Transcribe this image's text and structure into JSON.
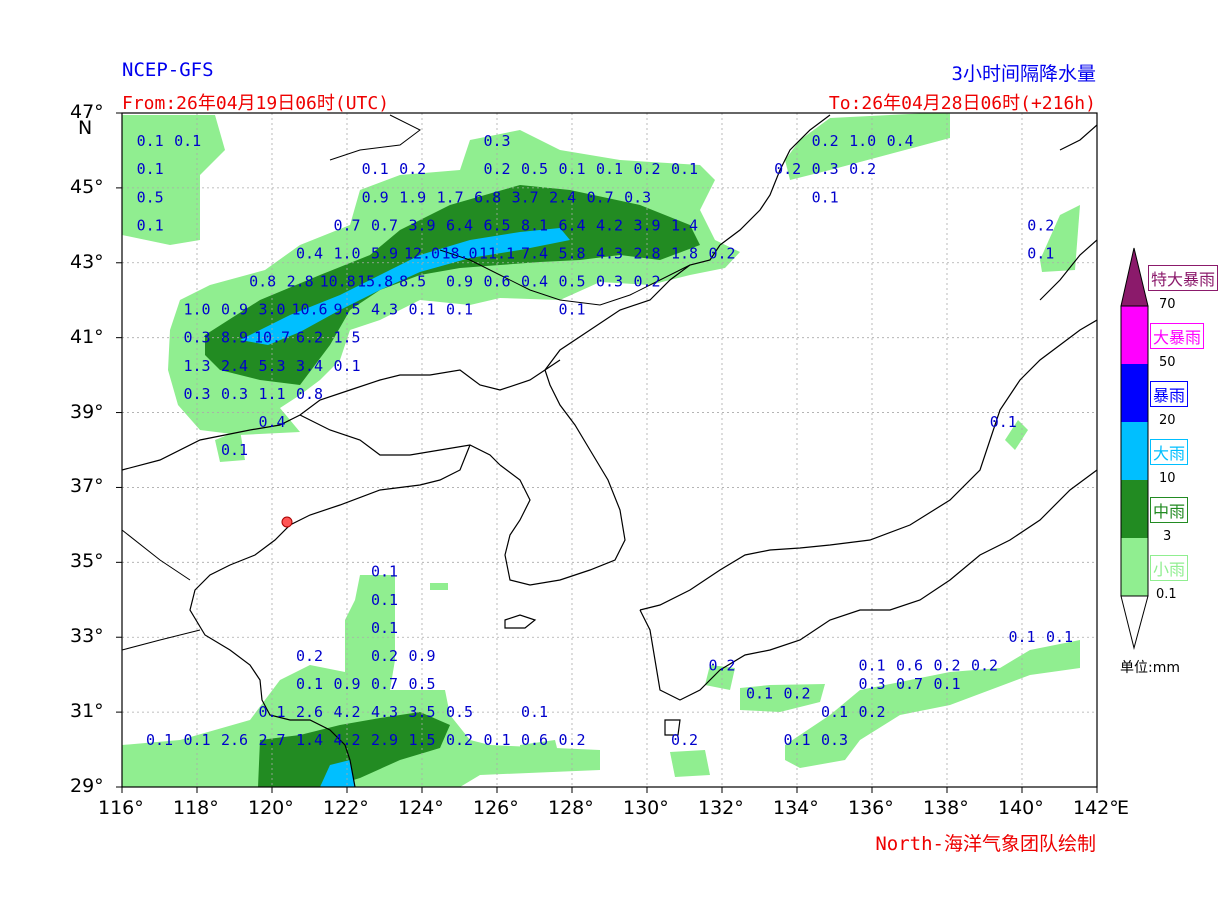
{
  "header": {
    "model": "NCEP-GFS",
    "product": "3小时间隔降水量",
    "from": "From:26年04月19日06时(UTC)",
    "to": "To:26年04月28日06时(+216h)"
  },
  "footer": {
    "credit": "North-海洋气象团队绘制"
  },
  "axes": {
    "lat_ticks": [
      "47°",
      "45°",
      "43°",
      "41°",
      "39°",
      "37°",
      "35°",
      "33°",
      "31°",
      "29°"
    ],
    "lat_unit": "N",
    "lon_ticks": [
      "116°",
      "118°",
      "120°",
      "122°",
      "124°",
      "126°",
      "128°",
      "130°",
      "132°",
      "134°",
      "136°",
      "138°",
      "140°",
      "142°"
    ],
    "lon_unit": "E",
    "lon_range": [
      116,
      142
    ],
    "lat_range": [
      29,
      47
    ],
    "grid": true
  },
  "legend": {
    "unit": "单位:mm",
    "thresholds": [
      "0.1",
      "3",
      "10",
      "20",
      "50",
      "70"
    ],
    "categories": [
      {
        "name": "小雨",
        "color": "#90ee90"
      },
      {
        "name": "中雨",
        "color": "#228b22"
      },
      {
        "name": "大雨",
        "color": "#00bfff"
      },
      {
        "name": "暴雨",
        "color": "#0000ff"
      },
      {
        "name": "大暴雨",
        "color": "#ff00ff"
      },
      {
        "name": "特大暴雨",
        "color": "#8b1a6b"
      }
    ]
  },
  "values": [
    {
      "lon": 116.75,
      "lat": 46.25,
      "v": "0.1"
    },
    {
      "lon": 117.75,
      "lat": 46.25,
      "v": "0.1"
    },
    {
      "lon": 116.75,
      "lat": 45.5,
      "v": "0.1"
    },
    {
      "lon": 116.75,
      "lat": 44.75,
      "v": "0.5"
    },
    {
      "lon": 116.75,
      "lat": 44.0,
      "v": "0.1"
    },
    {
      "lon": 126.0,
      "lat": 46.25,
      "v": "0.3"
    },
    {
      "lon": 122.75,
      "lat": 45.5,
      "v": "0.1"
    },
    {
      "lon": 123.75,
      "lat": 45.5,
      "v": "0.2"
    },
    {
      "lon": 126.0,
      "lat": 45.5,
      "v": "0.2"
    },
    {
      "lon": 127.0,
      "lat": 45.5,
      "v": "0.5"
    },
    {
      "lon": 128.0,
      "lat": 45.5,
      "v": "0.1"
    },
    {
      "lon": 129.0,
      "lat": 45.5,
      "v": "0.1"
    },
    {
      "lon": 130.0,
      "lat": 45.5,
      "v": "0.2"
    },
    {
      "lon": 131.0,
      "lat": 45.5,
      "v": "0.1"
    },
    {
      "lon": 122.75,
      "lat": 44.75,
      "v": "0.9"
    },
    {
      "lon": 123.75,
      "lat": 44.75,
      "v": "1.9"
    },
    {
      "lon": 124.75,
      "lat": 44.75,
      "v": "1.7"
    },
    {
      "lon": 125.75,
      "lat": 44.75,
      "v": "6.8"
    },
    {
      "lon": 126.75,
      "lat": 44.75,
      "v": "3.7"
    },
    {
      "lon": 127.75,
      "lat": 44.75,
      "v": "2.4"
    },
    {
      "lon": 128.75,
      "lat": 44.75,
      "v": "0.7"
    },
    {
      "lon": 129.75,
      "lat": 44.75,
      "v": "0.3"
    },
    {
      "lon": 122.0,
      "lat": 44.0,
      "v": "0.7"
    },
    {
      "lon": 123.0,
      "lat": 44.0,
      "v": "0.7"
    },
    {
      "lon": 124.0,
      "lat": 44.0,
      "v": "3.9"
    },
    {
      "lon": 125.0,
      "lat": 44.0,
      "v": "6.4"
    },
    {
      "lon": 126.0,
      "lat": 44.0,
      "v": "6.5"
    },
    {
      "lon": 127.0,
      "lat": 44.0,
      "v": "8.1"
    },
    {
      "lon": 128.0,
      "lat": 44.0,
      "v": "6.4"
    },
    {
      "lon": 129.0,
      "lat": 44.0,
      "v": "4.2"
    },
    {
      "lon": 130.0,
      "lat": 44.0,
      "v": "3.9"
    },
    {
      "lon": 131.0,
      "lat": 44.0,
      "v": "1.4"
    },
    {
      "lon": 121.0,
      "lat": 43.25,
      "v": "0.4"
    },
    {
      "lon": 122.0,
      "lat": 43.25,
      "v": "1.0"
    },
    {
      "lon": 123.0,
      "lat": 43.25,
      "v": "5.9"
    },
    {
      "lon": 124.0,
      "lat": 43.25,
      "v": "12.0"
    },
    {
      "lon": 125.0,
      "lat": 43.25,
      "v": "18.0"
    },
    {
      "lon": 126.0,
      "lat": 43.25,
      "v": "11.1"
    },
    {
      "lon": 127.0,
      "lat": 43.25,
      "v": "7.4"
    },
    {
      "lon": 128.0,
      "lat": 43.25,
      "v": "5.8"
    },
    {
      "lon": 129.0,
      "lat": 43.25,
      "v": "4.3"
    },
    {
      "lon": 130.0,
      "lat": 43.25,
      "v": "2.8"
    },
    {
      "lon": 131.0,
      "lat": 43.25,
      "v": "1.8"
    },
    {
      "lon": 132.0,
      "lat": 43.25,
      "v": "0.2"
    },
    {
      "lon": 119.75,
      "lat": 42.5,
      "v": "0.8"
    },
    {
      "lon": 120.75,
      "lat": 42.5,
      "v": "2.8"
    },
    {
      "lon": 121.75,
      "lat": 42.5,
      "v": "10.8"
    },
    {
      "lon": 122.75,
      "lat": 42.5,
      "v": "15.8"
    },
    {
      "lon": 123.75,
      "lat": 42.5,
      "v": "8.5"
    },
    {
      "lon": 125.0,
      "lat": 42.5,
      "v": "0.9"
    },
    {
      "lon": 126.0,
      "lat": 42.5,
      "v": "0.6"
    },
    {
      "lon": 127.0,
      "lat": 42.5,
      "v": "0.4"
    },
    {
      "lon": 128.0,
      "lat": 42.5,
      "v": "0.5"
    },
    {
      "lon": 129.0,
      "lat": 42.5,
      "v": "0.3"
    },
    {
      "lon": 130.0,
      "lat": 42.5,
      "v": "0.2"
    },
    {
      "lon": 118.0,
      "lat": 41.75,
      "v": "1.0"
    },
    {
      "lon": 119.0,
      "lat": 41.75,
      "v": "0.9"
    },
    {
      "lon": 120.0,
      "lat": 41.75,
      "v": "3.0"
    },
    {
      "lon": 121.0,
      "lat": 41.75,
      "v": "10.6"
    },
    {
      "lon": 122.0,
      "lat": 41.75,
      "v": "9.5"
    },
    {
      "lon": 123.0,
      "lat": 41.75,
      "v": "4.3"
    },
    {
      "lon": 124.0,
      "lat": 41.75,
      "v": "0.1"
    },
    {
      "lon": 125.0,
      "lat": 41.75,
      "v": "0.1"
    },
    {
      "lon": 128.0,
      "lat": 41.75,
      "v": "0.1"
    },
    {
      "lon": 118.0,
      "lat": 41.0,
      "v": "0.3"
    },
    {
      "lon": 119.0,
      "lat": 41.0,
      "v": "8.9"
    },
    {
      "lon": 120.0,
      "lat": 41.0,
      "v": "10.7"
    },
    {
      "lon": 121.0,
      "lat": 41.0,
      "v": "6.2"
    },
    {
      "lon": 122.0,
      "lat": 41.0,
      "v": "1.5"
    },
    {
      "lon": 118.0,
      "lat": 40.25,
      "v": "1.3"
    },
    {
      "lon": 119.0,
      "lat": 40.25,
      "v": "2.4"
    },
    {
      "lon": 120.0,
      "lat": 40.25,
      "v": "5.3"
    },
    {
      "lon": 121.0,
      "lat": 40.25,
      "v": "3.4"
    },
    {
      "lon": 122.0,
      "lat": 40.25,
      "v": "0.1"
    },
    {
      "lon": 118.0,
      "lat": 39.5,
      "v": "0.3"
    },
    {
      "lon": 119.0,
      "lat": 39.5,
      "v": "0.3"
    },
    {
      "lon": 120.0,
      "lat": 39.5,
      "v": "1.1"
    },
    {
      "lon": 121.0,
      "lat": 39.5,
      "v": "0.8"
    },
    {
      "lon": 120.0,
      "lat": 38.75,
      "v": "0.4"
    },
    {
      "lon": 119.0,
      "lat": 38.0,
      "v": "0.1"
    },
    {
      "lon": 134.75,
      "lat": 46.25,
      "v": "0.2"
    },
    {
      "lon": 135.75,
      "lat": 46.25,
      "v": "1.0"
    },
    {
      "lon": 136.75,
      "lat": 46.25,
      "v": "0.4"
    },
    {
      "lon": 133.75,
      "lat": 45.5,
      "v": "0.2"
    },
    {
      "lon": 134.75,
      "lat": 45.5,
      "v": "0.3"
    },
    {
      "lon": 135.75,
      "lat": 45.5,
      "v": "0.2"
    },
    {
      "lon": 134.75,
      "lat": 44.75,
      "v": "0.1"
    },
    {
      "lon": 140.5,
      "lat": 44.0,
      "v": "0.2"
    },
    {
      "lon": 140.5,
      "lat": 43.25,
      "v": "0.1"
    },
    {
      "lon": 139.5,
      "lat": 38.75,
      "v": "0.1"
    },
    {
      "lon": 123.0,
      "lat": 34.75,
      "v": "0.1"
    },
    {
      "lon": 123.0,
      "lat": 34.0,
      "v": "0.1"
    },
    {
      "lon": 123.0,
      "lat": 33.25,
      "v": "0.1"
    },
    {
      "lon": 121.0,
      "lat": 32.5,
      "v": "0.2"
    },
    {
      "lon": 123.0,
      "lat": 32.5,
      "v": "0.2"
    },
    {
      "lon": 124.0,
      "lat": 32.5,
      "v": "0.9"
    },
    {
      "lon": 121.0,
      "lat": 31.75,
      "v": "0.1"
    },
    {
      "lon": 122.0,
      "lat": 31.75,
      "v": "0.9"
    },
    {
      "lon": 123.0,
      "lat": 31.75,
      "v": "0.7"
    },
    {
      "lon": 124.0,
      "lat": 31.75,
      "v": "0.5"
    },
    {
      "lon": 120.0,
      "lat": 31.0,
      "v": "0.1"
    },
    {
      "lon": 121.0,
      "lat": 31.0,
      "v": "2.6"
    },
    {
      "lon": 122.0,
      "lat": 31.0,
      "v": "4.2"
    },
    {
      "lon": 123.0,
      "lat": 31.0,
      "v": "4.3"
    },
    {
      "lon": 124.0,
      "lat": 31.0,
      "v": "3.5"
    },
    {
      "lon": 125.0,
      "lat": 31.0,
      "v": "0.5"
    },
    {
      "lon": 127.0,
      "lat": 31.0,
      "v": "0.1"
    },
    {
      "lon": 117.0,
      "lat": 30.25,
      "v": "0.1"
    },
    {
      "lon": 118.0,
      "lat": 30.25,
      "v": "0.1"
    },
    {
      "lon": 119.0,
      "lat": 30.25,
      "v": "2.6"
    },
    {
      "lon": 120.0,
      "lat": 30.25,
      "v": "2.7"
    },
    {
      "lon": 121.0,
      "lat": 30.25,
      "v": "1.4"
    },
    {
      "lon": 122.0,
      "lat": 30.25,
      "v": "4.2"
    },
    {
      "lon": 123.0,
      "lat": 30.25,
      "v": "2.9"
    },
    {
      "lon": 124.0,
      "lat": 30.25,
      "v": "1.5"
    },
    {
      "lon": 125.0,
      "lat": 30.25,
      "v": "0.2"
    },
    {
      "lon": 126.0,
      "lat": 30.25,
      "v": "0.1"
    },
    {
      "lon": 127.0,
      "lat": 30.25,
      "v": "0.6"
    },
    {
      "lon": 128.0,
      "lat": 30.25,
      "v": "0.2"
    },
    {
      "lon": 132.0,
      "lat": 32.25,
      "v": "0.2"
    },
    {
      "lon": 133.0,
      "lat": 31.5,
      "v": "0.1"
    },
    {
      "lon": 134.0,
      "lat": 31.5,
      "v": "0.2"
    },
    {
      "lon": 131.0,
      "lat": 30.25,
      "v": "0.2"
    },
    {
      "lon": 134.0,
      "lat": 30.25,
      "v": "0.1"
    },
    {
      "lon": 135.0,
      "lat": 30.25,
      "v": "0.3"
    },
    {
      "lon": 135.0,
      "lat": 31.0,
      "v": "0.1"
    },
    {
      "lon": 136.0,
      "lat": 31.0,
      "v": "0.2"
    },
    {
      "lon": 136.0,
      "lat": 31.75,
      "v": "0.3"
    },
    {
      "lon": 137.0,
      "lat": 31.75,
      "v": "0.7"
    },
    {
      "lon": 138.0,
      "lat": 31.75,
      "v": "0.1"
    },
    {
      "lon": 136.0,
      "lat": 32.25,
      "v": "0.1"
    },
    {
      "lon": 137.0,
      "lat": 32.25,
      "v": "0.6"
    },
    {
      "lon": 138.0,
      "lat": 32.25,
      "v": "0.2"
    },
    {
      "lon": 139.0,
      "lat": 32.25,
      "v": "0.2"
    },
    {
      "lon": 140.0,
      "lat": 33.0,
      "v": "0.1"
    },
    {
      "lon": 141.0,
      "lat": 33.0,
      "v": "0.1"
    }
  ]
}
